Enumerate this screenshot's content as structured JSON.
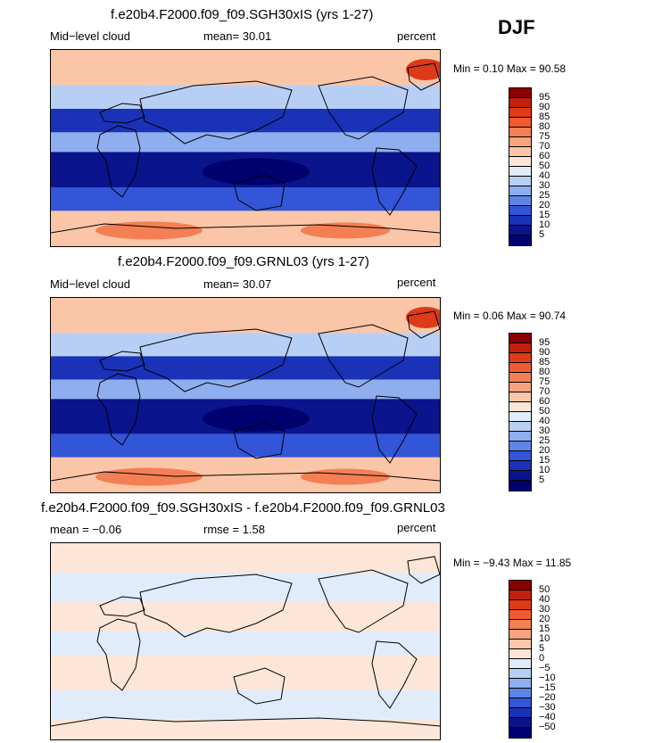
{
  "season": "DJF",
  "panels": [
    {
      "title": "f.e20b4.F2000.f09_f09.SGH30xIS (yrs 1-27)",
      "left_label": "Mid−level cloud",
      "mid_label": "mean=  30.01",
      "units": "percent",
      "minmax": "Min =    0.10 Max =  90.58",
      "ticks": [
        "95",
        "90",
        "85",
        "80",
        "75",
        "70",
        "60",
        "50",
        "40",
        "30",
        "25",
        "20",
        "15",
        "10",
        "5"
      ],
      "colors": [
        "#8b0000",
        "#c0200c",
        "#de3a18",
        "#f05a32",
        "#f47f55",
        "#f8a37f",
        "#fbc6a8",
        "#fde6d8",
        "#e0ecfb",
        "#b8cff5",
        "#8faeef",
        "#5e84e6",
        "#3355d8",
        "#1a32b8",
        "#0a148c",
        "#00006e"
      ],
      "kind": "field"
    },
    {
      "title": "f.e20b4.F2000.f09_f09.GRNL03 (yrs 1-27)",
      "left_label": "Mid−level cloud",
      "mid_label": "mean=  30.07",
      "units": "percent",
      "minmax": "Min =    0.06 Max =  90.74",
      "ticks": [
        "95",
        "90",
        "85",
        "80",
        "75",
        "70",
        "60",
        "50",
        "40",
        "30",
        "25",
        "20",
        "15",
        "10",
        "5"
      ],
      "colors": [
        "#8b0000",
        "#c0200c",
        "#de3a18",
        "#f05a32",
        "#f47f55",
        "#f8a37f",
        "#fbc6a8",
        "#fde6d8",
        "#e0ecfb",
        "#b8cff5",
        "#8faeef",
        "#5e84e6",
        "#3355d8",
        "#1a32b8",
        "#0a148c",
        "#00006e"
      ],
      "kind": "field"
    },
    {
      "title": "f.e20b4.F2000.f09_f09.SGH30xIS - f.e20b4.F2000.f09_f09.GRNL03",
      "left_label": "mean =   −0.06",
      "mid_label": "rmse =    1.58",
      "units": "percent",
      "minmax": "Min =  −9.43 Max =   11.85",
      "ticks": [
        "50",
        "40",
        "30",
        "20",
        "15",
        "10",
        "5",
        "0",
        "−5",
        "−10",
        "−15",
        "−20",
        "−30",
        "−40",
        "−50"
      ],
      "colors": [
        "#8b0000",
        "#c0200c",
        "#de3a18",
        "#f05a32",
        "#f47f55",
        "#f8a37f",
        "#fbc6a8",
        "#fde6d8",
        "#e0ecfb",
        "#b8cff5",
        "#8faeef",
        "#5e84e6",
        "#3355d8",
        "#1a32b8",
        "#0a148c",
        "#00006e"
      ],
      "kind": "diff"
    }
  ]
}
